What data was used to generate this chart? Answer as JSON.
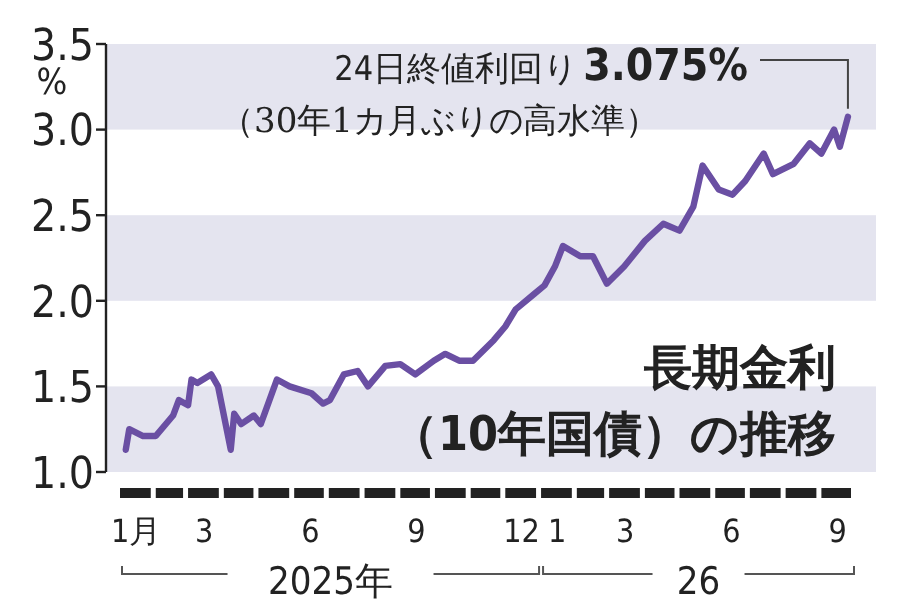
{
  "chart_data": {
    "type": "line",
    "title": "長期金利",
    "subtitle": "（10年国債）の推移",
    "ylabel": "%",
    "x": [
      "2025-01-06",
      "2025-01-09",
      "2025-01-21",
      "2025-02-01",
      "2025-02-16",
      "2025-02-21",
      "2025-03-01",
      "2025-03-04",
      "2025-03-09",
      "2025-03-21",
      "2025-03-27",
      "2025-04-07",
      "2025-04-10",
      "2025-04-16",
      "2025-04-27",
      "2025-05-03",
      "2025-05-17",
      "2025-05-28",
      "2025-06-16",
      "2025-06-26",
      "2025-07-02",
      "2025-07-14",
      "2025-07-26",
      "2025-08-04",
      "2025-08-19",
      "2025-09-01",
      "2025-09-14",
      "2025-09-30",
      "2025-10-10",
      "2025-10-22",
      "2025-11-03",
      "2025-11-21",
      "2025-12-01",
      "2025-12-10",
      "2025-12-26",
      "2026-01-04",
      "2026-01-13",
      "2026-01-20",
      "2026-02-04",
      "2026-02-15",
      "2026-02-27",
      "2026-03-14",
      "2026-04-01",
      "2026-04-17",
      "2026-05-01",
      "2026-05-13",
      "2026-05-21",
      "2026-06-04",
      "2026-06-16",
      "2026-06-27",
      "2026-07-13",
      "2026-07-21",
      "2026-08-08",
      "2026-08-22",
      "2026-09-01",
      "2026-09-12",
      "2026-09-17",
      "2026-09-24"
    ],
    "series": [
      {
        "color": "#6a4fa3",
        "values": [
          1.13,
          1.25,
          1.21,
          1.21,
          1.33,
          1.42,
          1.39,
          1.54,
          1.52,
          1.57,
          1.5,
          1.13,
          1.34,
          1.28,
          1.33,
          1.28,
          1.54,
          1.5,
          1.46,
          1.4,
          1.42,
          1.57,
          1.59,
          1.5,
          1.62,
          1.63,
          1.57,
          1.65,
          1.69,
          1.65,
          1.65,
          1.77,
          1.85,
          1.95,
          2.04,
          2.09,
          2.2,
          2.32,
          2.26,
          2.26,
          2.1,
          2.2,
          2.35,
          2.45,
          2.41,
          2.55,
          2.79,
          2.65,
          2.62,
          2.7,
          2.86,
          2.74,
          2.8,
          2.92,
          2.86,
          3.0,
          2.9,
          3.075
        ]
      }
    ],
    "xlim": [
      "2025-01-01",
      "2026-10-01"
    ],
    "xticks": [
      {
        "value": "2025-01-15",
        "label": "1月"
      },
      {
        "value": "2025-03-15",
        "label": "3"
      },
      {
        "value": "2025-06-15",
        "label": "6"
      },
      {
        "value": "2025-09-15",
        "label": "9"
      },
      {
        "value": "2025-12-15",
        "label": "12"
      },
      {
        "value": "2026-01-15",
        "label": "1"
      },
      {
        "value": "2026-03-15",
        "label": "3"
      },
      {
        "value": "2026-06-15",
        "label": "6"
      },
      {
        "value": "2026-09-15",
        "label": "9"
      }
    ],
    "ylim": [
      1.0,
      3.5
    ],
    "yticks": [
      {
        "value": 1.0,
        "label": "1.0"
      },
      {
        "value": 1.5,
        "label": "1.5"
      },
      {
        "value": 2.0,
        "label": "2.0"
      },
      {
        "value": 2.5,
        "label": "2.5"
      },
      {
        "value": 3.0,
        "label": "3.0"
      },
      {
        "value": 3.5,
        "label": "3.5"
      }
    ],
    "bands": [
      {
        "axis": "y",
        "from": 1.0,
        "to": 1.5,
        "color": "#e4e4ef"
      },
      {
        "axis": "y",
        "from": 2.0,
        "to": 2.5,
        "color": "#e4e4ef"
      },
      {
        "axis": "y",
        "from": 3.0,
        "to": 3.5,
        "color": "#e4e4ef"
      }
    ],
    "annotations": [
      {
        "text": "24日終値利回り3.075%\n（30年1カ月ぶりの高水準）",
        "x": "2026-09-24",
        "y": 3.075
      },
      "2025年",
      "26"
    ],
    "grid": false
  }
}
